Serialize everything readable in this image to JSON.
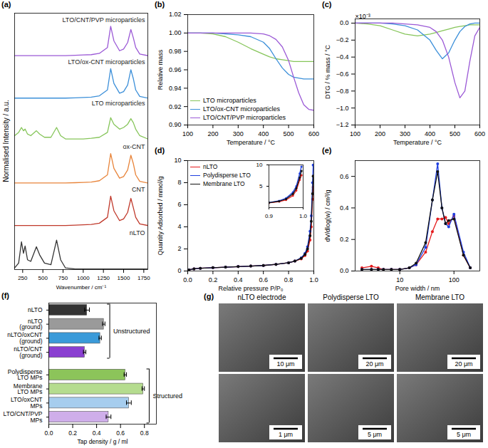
{
  "chart_data": [
    {
      "panel": "(a)",
      "type": "line",
      "x_label": "Wavenumber / cm⁻¹",
      "y_label": "Normalised Intensity / a.u.",
      "tick_labels": "x",
      "x": [
        150,
        200,
        235,
        260,
        280,
        310,
        350,
        420,
        460,
        520,
        600,
        670,
        720,
        780,
        900,
        1000,
        1100,
        1200,
        1300,
        1340,
        1380,
        1450,
        1500,
        1550,
        1590,
        1620,
        1650,
        1700,
        1800
      ],
      "xlim": [
        150,
        1800
      ],
      "xticks": [
        250,
        500,
        750,
        1000,
        1250,
        1500,
        1750
      ],
      "ylim": [
        0,
        7.85
      ],
      "yticks": [],
      "series": [
        {
          "name": "nLTO",
          "color": "#333333",
          "values": [
            0.05,
            0.2,
            0.85,
            0.5,
            0.72,
            0.3,
            0.25,
            0.7,
            0.45,
            0.2,
            0.15,
            0.9,
            0.3,
            0.05,
            0.02,
            0.02,
            0.02,
            0.02,
            0.02,
            0.02,
            0.02,
            0.02,
            0.02,
            0.02,
            0.02,
            0.02,
            0.02,
            0.02,
            0.02
          ]
        },
        {
          "name": "CNT",
          "color": "#c0392b",
          "values": [
            1.35,
            1.35,
            1.35,
            1.35,
            1.35,
            1.35,
            1.35,
            1.35,
            1.35,
            1.35,
            1.35,
            1.35,
            1.35,
            1.35,
            1.36,
            1.37,
            1.38,
            1.42,
            1.6,
            2.25,
            1.8,
            1.5,
            1.55,
            1.75,
            2.18,
            1.9,
            1.6,
            1.4,
            1.35
          ]
        },
        {
          "name": "ox-CNT",
          "color": "#e8843a",
          "values": [
            2.65,
            2.65,
            2.65,
            2.65,
            2.65,
            2.65,
            2.65,
            2.65,
            2.65,
            2.65,
            2.65,
            2.65,
            2.65,
            2.65,
            2.66,
            2.67,
            2.68,
            2.72,
            2.9,
            3.55,
            3.1,
            2.8,
            2.85,
            3.05,
            3.5,
            3.25,
            2.9,
            2.7,
            2.65
          ]
        },
        {
          "name": "LTO microparticles",
          "color": "#86c55a",
          "values": [
            4.1,
            4.2,
            4.35,
            4.25,
            4.3,
            4.15,
            4.1,
            4.25,
            4.15,
            4.05,
            4.05,
            4.35,
            4.1,
            4.0,
            4.0,
            4.0,
            4.02,
            4.05,
            4.2,
            4.65,
            4.45,
            4.3,
            4.35,
            4.45,
            4.62,
            4.5,
            4.3,
            4.1,
            4.0
          ]
        },
        {
          "name": "LTO/ox-CNT microparticles",
          "color": "#3b8fd9",
          "values": [
            5.25,
            5.25,
            5.25,
            5.25,
            5.25,
            5.25,
            5.25,
            5.25,
            5.25,
            5.25,
            5.25,
            5.25,
            5.25,
            5.25,
            5.26,
            5.27,
            5.28,
            5.32,
            5.5,
            6.15,
            5.7,
            5.4,
            5.45,
            5.65,
            6.12,
            5.85,
            5.5,
            5.3,
            5.25
          ]
        },
        {
          "name": "LTO/CNT/PVP microparticles",
          "color": "#9b59d6",
          "values": [
            6.55,
            6.55,
            6.55,
            6.55,
            6.55,
            6.55,
            6.55,
            6.55,
            6.55,
            6.55,
            6.55,
            6.55,
            6.55,
            6.55,
            6.56,
            6.57,
            6.58,
            6.62,
            6.8,
            7.45,
            7.0,
            6.7,
            6.75,
            6.95,
            7.35,
            7.1,
            6.8,
            6.6,
            6.55
          ]
        }
      ]
    },
    {
      "panel": "(b)",
      "type": "line",
      "x_label": "Temperature / °C",
      "y_label": "Relative mass",
      "legend": "lower left",
      "x": [
        100,
        150,
        200,
        250,
        300,
        350,
        400,
        425,
        450,
        475,
        500,
        520,
        540,
        560,
        580,
        600
      ],
      "xlim": [
        100,
        600
      ],
      "xticks": [
        100,
        200,
        300,
        400,
        500,
        600
      ],
      "ylim": [
        0.9,
        1.02
      ],
      "yticks": [
        {
          "value": 0.9,
          "label": "0.90"
        },
        {
          "value": 0.92,
          "label": "0.92"
        },
        {
          "value": 0.94,
          "label": "0.94"
        },
        {
          "value": 0.96,
          "label": "0.96"
        },
        {
          "value": 0.98,
          "label": "0.98"
        },
        {
          "value": 1,
          "label": "1.00"
        },
        {
          "value": 1.02,
          "label": "1.02"
        }
      ],
      "series": [
        {
          "name": "LTO microparticles",
          "color": "#86c55a",
          "values": [
            1.0,
            1.0,
            0.999,
            0.996,
            0.99,
            0.983,
            0.977,
            0.974,
            0.972,
            0.971,
            0.97,
            0.969,
            0.969,
            0.969,
            0.969,
            0.969
          ]
        },
        {
          "name": "LTO/ox-CNT microparticles",
          "color": "#3b8fd9",
          "values": [
            1.0,
            1.0,
            1.0,
            0.999,
            0.998,
            0.996,
            0.99,
            0.983,
            0.972,
            0.962,
            0.955,
            0.952,
            0.951,
            0.95,
            0.95,
            0.95
          ]
        },
        {
          "name": "LTO/CNT/PVP microparticles",
          "color": "#9b59d6",
          "values": [
            1.0,
            1.0,
            1.0,
            1.0,
            1.0,
            1.0,
            0.999,
            0.997,
            0.993,
            0.985,
            0.97,
            0.952,
            0.935,
            0.922,
            0.917,
            0.916
          ]
        }
      ]
    },
    {
      "panel": "(c)",
      "type": "line",
      "x_label": "Temperature / °C",
      "y_label": "DTG / % mass / °C",
      "annotation": "×10⁻³",
      "x": [
        100,
        150,
        200,
        250,
        300,
        350,
        400,
        425,
        450,
        475,
        500,
        520,
        540,
        560,
        580,
        600
      ],
      "xlim": [
        100,
        600
      ],
      "xticks": [
        100,
        200,
        300,
        400,
        500,
        600
      ],
      "ylim": [
        -1.2,
        0.05
      ],
      "yticks": [
        {
          "value": -1.2,
          "label": "−1.2"
        },
        {
          "value": -1,
          "label": "−1.0"
        },
        {
          "value": -0.8,
          "label": "−0.8"
        },
        {
          "value": -0.6,
          "label": "−0.6"
        },
        {
          "value": -0.4,
          "label": "−0.4"
        },
        {
          "value": -0.2,
          "label": "−0.2"
        },
        {
          "value": 0,
          "label": "0.0"
        }
      ],
      "series": [
        {
          "name": "LTO microparticles",
          "color": "#86c55a",
          "values": [
            0,
            -0.01,
            -0.03,
            -0.08,
            -0.13,
            -0.15,
            -0.13,
            -0.11,
            -0.09,
            -0.07,
            -0.05,
            -0.04,
            -0.03,
            -0.02,
            -0.02,
            -0.02
          ]
        },
        {
          "name": "LTO/ox-CNT microparticles",
          "color": "#3b8fd9",
          "values": [
            0,
            0,
            0,
            -0.01,
            -0.03,
            -0.08,
            -0.2,
            -0.32,
            -0.42,
            -0.35,
            -0.2,
            -0.1,
            -0.04,
            -0.01,
            0,
            0
          ]
        },
        {
          "name": "LTO/CNT/PVP microparticles",
          "color": "#9b59d6",
          "values": [
            0,
            0,
            0,
            0,
            -0.01,
            -0.02,
            -0.05,
            -0.1,
            -0.2,
            -0.4,
            -0.7,
            -0.88,
            -0.8,
            -0.45,
            -0.15,
            -0.05
          ]
        }
      ]
    },
    {
      "panel": "(d)",
      "type": "line",
      "x_label": "Relative pressure P/P₀",
      "y_label": "Quantity Adsorbed / mmol/g",
      "legend": "upper left",
      "marker": "circle",
      "x": [
        0.01,
        0.05,
        0.1,
        0.2,
        0.3,
        0.4,
        0.5,
        0.6,
        0.7,
        0.8,
        0.85,
        0.9,
        0.93,
        0.95,
        0.97,
        0.98,
        0.99,
        0.995
      ],
      "xlim": [
        0,
        1
      ],
      "xticks": [
        {
          "value": 0,
          "label": "0.0"
        },
        {
          "value": 0.2,
          "label": "0.2"
        },
        {
          "value": 0.4,
          "label": "0.4"
        },
        {
          "value": 0.6,
          "label": "0.6"
        },
        {
          "value": 0.8,
          "label": "0.8"
        },
        {
          "value": 1,
          "label": "1.0"
        }
      ],
      "ylim": [
        0,
        10
      ],
      "yticks": [
        0,
        2,
        4,
        6,
        8,
        10
      ],
      "series": [
        {
          "name": "nLTO",
          "color": "#e41a1c",
          "values": [
            0.1,
            0.2,
            0.25,
            0.3,
            0.35,
            0.4,
            0.45,
            0.5,
            0.6,
            0.75,
            0.9,
            1.1,
            1.4,
            1.8,
            2.8,
            4,
            6.5,
            7.6
          ]
        },
        {
          "name": "Polydisperse LTO",
          "color": "#1f3fe0",
          "values": [
            0.1,
            0.2,
            0.25,
            0.3,
            0.35,
            0.4,
            0.45,
            0.5,
            0.6,
            0.75,
            0.9,
            1.2,
            1.6,
            2.2,
            3.6,
            5,
            8,
            9.6
          ]
        },
        {
          "name": "Membrane LTO",
          "color": "#111111",
          "values": [
            0.1,
            0.2,
            0.25,
            0.3,
            0.35,
            0.4,
            0.45,
            0.5,
            0.6,
            0.75,
            0.9,
            1.15,
            1.5,
            2,
            3.2,
            4.5,
            7,
            8.6
          ]
        }
      ],
      "inset": {
        "type": "line",
        "marker": "circle",
        "x": [
          0.9,
          0.93,
          0.95,
          0.97,
          0.98,
          0.99,
          0.995
        ],
        "xlim": [
          0.9,
          1
        ],
        "xticks": [
          {
            "value": 0.9,
            "label": "0.9"
          },
          {
            "value": 1,
            "label": "1.0"
          }
        ],
        "ylim": [
          0,
          10
        ],
        "yticks": [
          5,
          10
        ],
        "series": [
          {
            "name": "nLTO",
            "color": "#e41a1c",
            "values": [
              1.1,
              1.4,
              1.8,
              2.8,
              4,
              6.5,
              7.6
            ]
          },
          {
            "name": "Polydisperse LTO",
            "color": "#1f3fe0",
            "values": [
              1.2,
              1.6,
              2.2,
              3.6,
              5,
              8,
              9.6
            ]
          },
          {
            "name": "Membrane LTO",
            "color": "#111111",
            "values": [
              1.15,
              1.5,
              2,
              3.2,
              4.5,
              7,
              8.6
            ]
          }
        ]
      }
    },
    {
      "panel": "(e)",
      "type": "line",
      "x_label": "Pore width / nm",
      "y_label": "dV/dlog(w) / cm³/g",
      "log": "x",
      "marker": "circle",
      "x": [
        2,
        3,
        4,
        5,
        7,
        10,
        15,
        20,
        30,
        40,
        50,
        60,
        70,
        80,
        100,
        150,
        200
      ],
      "xlim": [
        1.5,
        300
      ],
      "xticks": [
        10,
        100
      ],
      "ylim": [
        0,
        0.7
      ],
      "yticks": [
        {
          "value": 0,
          "label": "0.0"
        },
        {
          "value": 0.2,
          "label": "0.2"
        },
        {
          "value": 0.4,
          "label": "0.4"
        },
        {
          "value": 0.6,
          "label": "0.6"
        }
      ],
      "series": [
        {
          "name": "nLTO",
          "color": "#e41a1c",
          "values": [
            0.02,
            0.03,
            0.02,
            0.01,
            0.01,
            0.01,
            0.02,
            0.04,
            0.12,
            0.25,
            0.33,
            0.33,
            0.34,
            0.3,
            0.35,
            0.1,
            0.02
          ]
        },
        {
          "name": "Polydisperse LTO",
          "color": "#1f3fe0",
          "values": [
            0.01,
            0.01,
            0.01,
            0.01,
            0.01,
            0.01,
            0.02,
            0.04,
            0.15,
            0.45,
            0.68,
            0.4,
            0.3,
            0.28,
            0.36,
            0.12,
            0.02
          ]
        },
        {
          "name": "Membrane LTO",
          "color": "#111111",
          "values": [
            0.01,
            0.01,
            0.01,
            0.01,
            0.01,
            0.01,
            0.02,
            0.05,
            0.18,
            0.45,
            0.63,
            0.4,
            0.3,
            0.32,
            0.33,
            0.1,
            0.02
          ]
        }
      ]
    },
    {
      "panel": "(f)",
      "type": "bar",
      "orientation": "horizontal",
      "x_label": "Tap density / g / ml",
      "categories": [
        "nLTO",
        "nLTO (ground)",
        "nLTO/oxCNT (ground)",
        "nLTO/CNT (ground)",
        "Polydisperse LTO MPs",
        "Membrane LTO MPs",
        "LTO/oxCNT MPs",
        "LTO/CNT/PVP MPs"
      ],
      "values": [
        0.32,
        0.46,
        0.43,
        0.3,
        0.64,
        0.79,
        0.67,
        0.5
      ],
      "errors": [
        0.02,
        0.01,
        0.01,
        0.01,
        0.01,
        0.01,
        0.02,
        0.02
      ],
      "colors": [
        "#333333",
        "#9a9a9a",
        "#3a9ad9",
        "#8a3fd1",
        "#8cc45a",
        "#b5dc8f",
        "#a6cdee",
        "#cfaeea"
      ],
      "groups": [
        "Unstructured",
        "Unstructured",
        "Unstructured",
        "Unstructured",
        "Structured",
        "Structured",
        "Structured",
        "Structured"
      ],
      "xlim": [
        0,
        0.9
      ],
      "xticks": [
        {
          "value": 0,
          "label": "0.0"
        },
        {
          "value": 0.2,
          "label": "0.2"
        },
        {
          "value": 0.4,
          "label": "0.4"
        },
        {
          "value": 0.6,
          "label": "0.6"
        },
        {
          "value": 0.8,
          "label": "0.8"
        }
      ]
    }
  ],
  "images": {
    "panel": "(g)",
    "columns": [
      "nLTO electrode",
      "Polydisperse LTO",
      "Membrane LTO"
    ],
    "scale_bars": [
      [
        "10 μm",
        "1 μm"
      ],
      [
        "20 μm",
        "5 μm"
      ],
      [
        "20 μm",
        "5 μm"
      ]
    ]
  }
}
